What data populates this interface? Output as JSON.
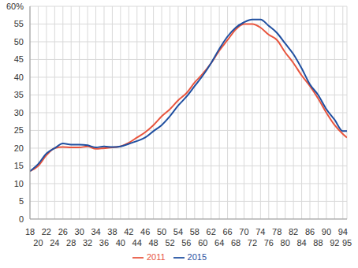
{
  "chart_data": {
    "type": "line",
    "x": [
      18,
      20,
      22,
      24,
      26,
      28,
      30,
      32,
      34,
      36,
      38,
      40,
      42,
      44,
      46,
      48,
      50,
      52,
      54,
      56,
      58,
      60,
      62,
      64,
      66,
      68,
      70,
      72,
      74,
      76,
      78,
      80,
      82,
      84,
      86,
      88,
      90,
      92,
      94,
      95
    ],
    "series": [
      {
        "name": "2011",
        "color": "#e8553e",
        "values": [
          13.5,
          15,
          18,
          20,
          20.3,
          20.2,
          20.2,
          20.5,
          19.8,
          20,
          20.2,
          20.5,
          21.5,
          23,
          24.5,
          26.5,
          29,
          31,
          33.5,
          35.5,
          38.5,
          41,
          44,
          47.5,
          50.5,
          53.5,
          55,
          55,
          54,
          52,
          50.5,
          47,
          44,
          40.5,
          37.5,
          34,
          30,
          26.5,
          24,
          23
        ]
      },
      {
        "name": "2015",
        "color": "#1f4fa0",
        "values": [
          13.5,
          15.5,
          18.5,
          20,
          21.3,
          21,
          21,
          20.8,
          20.2,
          20.5,
          20.3,
          20.5,
          21.2,
          22,
          23,
          24.8,
          26.5,
          29,
          32,
          34.5,
          37.5,
          40.5,
          44,
          48,
          51.5,
          54,
          55.5,
          56.3,
          56.3,
          54.5,
          52.5,
          49.5,
          46.5,
          42.5,
          38,
          35,
          31,
          28,
          24.8,
          24.8
        ]
      }
    ],
    "xlim": [
      18,
      95
    ],
    "xticks": [
      18,
      20,
      22,
      24,
      26,
      28,
      30,
      32,
      34,
      36,
      38,
      40,
      42,
      44,
      46,
      48,
      50,
      52,
      54,
      56,
      58,
      60,
      62,
      64,
      66,
      68,
      70,
      72,
      74,
      76,
      78,
      80,
      82,
      84,
      86,
      88,
      90,
      92,
      94,
      95
    ],
    "ylim": [
      0,
      60
    ],
    "yticks": [
      0,
      5,
      10,
      15,
      20,
      25,
      30,
      35,
      40,
      45,
      50,
      55,
      {
        "value": 60,
        "label": "60%"
      }
    ],
    "grid": true,
    "legend": "bottom"
  }
}
